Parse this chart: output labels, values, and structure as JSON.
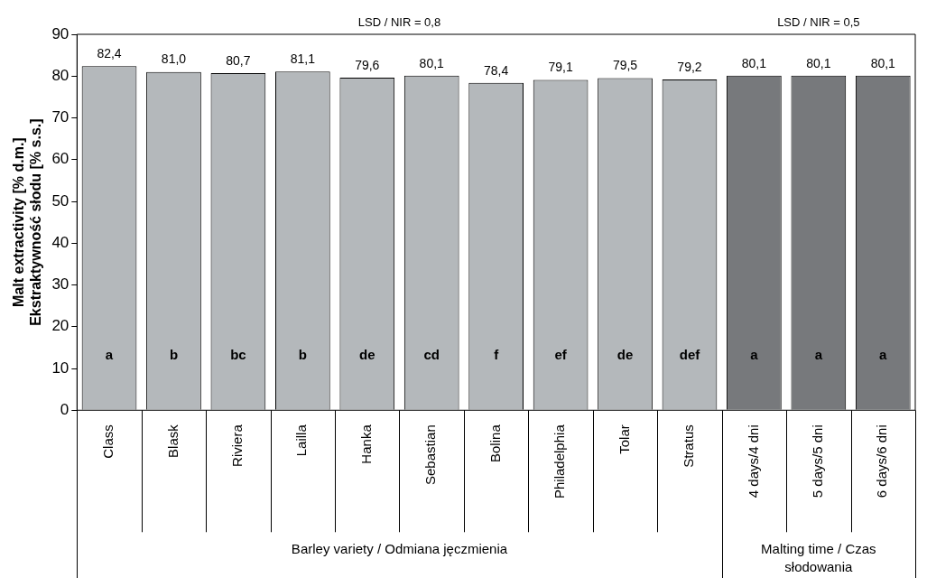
{
  "chart_data": {
    "type": "bar",
    "ylabel": "Malt extractivity [% d.m.]\nEkstraktywność słodu [% s.s.]",
    "categories": [
      "Class",
      "Blask",
      "Riviera",
      "Lailla",
      "Hanka",
      "Sebastian",
      "Bolina",
      "Philadelphia",
      "Tolar",
      "Stratus",
      "4 days/4 dni",
      "5 days/5 dni",
      "6 days/6 dni"
    ],
    "values": [
      82.4,
      81.0,
      80.7,
      81.1,
      79.6,
      80.1,
      78.4,
      79.1,
      79.5,
      79.2,
      80.1,
      80.1,
      80.1
    ],
    "colors": [
      "#b4b8bb",
      "#b4b8bb",
      "#b4b8bb",
      "#b4b8bb",
      "#b4b8bb",
      "#b4b8bb",
      "#b4b8bb",
      "#b4b8bb",
      "#b4b8bb",
      "#b4b8bb",
      "#77797c",
      "#77797c",
      "#77797c"
    ],
    "value_labels": [
      "82,4",
      "81,0",
      "80,7",
      "81,1",
      "79,6",
      "80,1",
      "78,4",
      "79,1",
      "79,5",
      "79,2",
      "80,1",
      "80,1",
      "80,1"
    ],
    "ylim": [
      0,
      90
    ],
    "yticks": [
      0,
      10,
      20,
      30,
      40,
      50,
      60,
      70,
      80,
      90
    ],
    "grid": false,
    "legend": false,
    "annotations": [
      "LSD / NIR = 0,8",
      "LSD / NIR = 0,5",
      "Barley variety / Odmiana jęczmienia",
      "Malting time / Czas słodowania",
      "a",
      "b",
      "bc",
      "b",
      "de",
      "cd",
      "f",
      "ef",
      "de",
      "def",
      "a",
      "a",
      "a"
    ]
  }
}
